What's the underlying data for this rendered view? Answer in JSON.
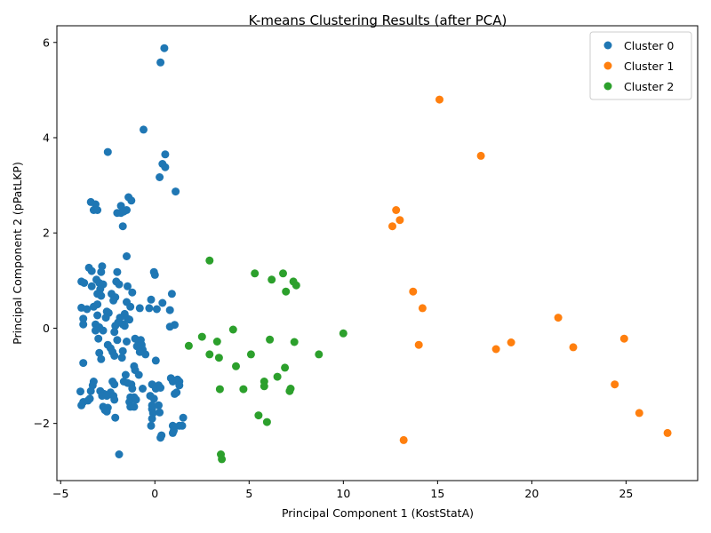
{
  "chart_data": {
    "type": "scatter",
    "title": "K-means Clustering Results (after PCA)",
    "xlabel": "Principal Component 1 (KostStatA)",
    "ylabel": "Principal Component 2 (pPatLKP)",
    "xlim": [
      -5.2,
      28.8
    ],
    "ylim": [
      -3.2,
      6.35
    ],
    "xticks": [
      -5,
      0,
      5,
      10,
      15,
      20,
      25
    ],
    "yticks": [
      -2,
      0,
      2,
      4,
      6
    ],
    "grid": false,
    "legend_position": "top-right",
    "series": [
      {
        "name": "Cluster 0",
        "color": "#1f77b4",
        "points": [
          [
            0.5,
            5.88
          ],
          [
            0.3,
            5.58
          ],
          [
            -0.6,
            4.17
          ],
          [
            0.55,
            3.65
          ],
          [
            -2.5,
            3.7
          ],
          [
            0.4,
            3.45
          ],
          [
            0.55,
            3.38
          ],
          [
            0.25,
            3.17
          ],
          [
            1.1,
            2.87
          ],
          [
            -1.4,
            2.75
          ],
          [
            -1.25,
            2.68
          ],
          [
            -3.4,
            2.65
          ],
          [
            -3.15,
            2.6
          ],
          [
            -3.25,
            2.48
          ],
          [
            -3.05,
            2.48
          ],
          [
            -1.8,
            2.57
          ],
          [
            -1.5,
            2.48
          ],
          [
            -2.0,
            2.42
          ],
          [
            -1.8,
            2.42
          ],
          [
            -1.65,
            2.45
          ],
          [
            -1.7,
            2.14
          ],
          [
            -1.5,
            1.51
          ],
          [
            -3.5,
            1.27
          ],
          [
            -3.35,
            1.2
          ],
          [
            -2.8,
            1.3
          ],
          [
            -2.85,
            1.18
          ],
          [
            -2.0,
            1.18
          ],
          [
            -0.05,
            1.18
          ],
          [
            0.0,
            1.12
          ],
          [
            -3.9,
            0.98
          ],
          [
            -3.75,
            0.95
          ],
          [
            -3.1,
            1.02
          ],
          [
            -2.95,
            0.95
          ],
          [
            -2.75,
            0.92
          ],
          [
            -3.35,
            0.88
          ],
          [
            -2.05,
            0.98
          ],
          [
            -1.9,
            0.92
          ],
          [
            -1.45,
            0.88
          ],
          [
            -2.9,
            0.82
          ],
          [
            -2.3,
            0.72
          ],
          [
            -3.05,
            0.72
          ],
          [
            -2.85,
            0.68
          ],
          [
            -2.1,
            0.65
          ],
          [
            -2.2,
            0.58
          ],
          [
            -1.2,
            0.75
          ],
          [
            -0.2,
            0.6
          ],
          [
            0.4,
            0.53
          ],
          [
            0.9,
            0.72
          ],
          [
            0.8,
            0.38
          ],
          [
            0.1,
            0.4
          ],
          [
            -0.3,
            0.42
          ],
          [
            -0.8,
            0.42
          ],
          [
            -3.9,
            0.43
          ],
          [
            -3.6,
            0.4
          ],
          [
            -3.25,
            0.45
          ],
          [
            -3.05,
            0.5
          ],
          [
            -2.55,
            0.35
          ],
          [
            -2.45,
            0.32
          ],
          [
            -1.5,
            0.55
          ],
          [
            -1.3,
            0.45
          ],
          [
            -1.6,
            0.3
          ],
          [
            -1.45,
            0.2
          ],
          [
            -1.7,
            0.08
          ],
          [
            -3.8,
            0.2
          ],
          [
            -3.05,
            0.27
          ],
          [
            -2.6,
            0.22
          ],
          [
            -1.95,
            0.12
          ],
          [
            -1.85,
            0.22
          ],
          [
            -1.35,
            0.18
          ],
          [
            -3.8,
            0.08
          ],
          [
            -3.15,
            0.08
          ],
          [
            -2.95,
            0.02
          ],
          [
            -2.1,
            0.05
          ],
          [
            -1.6,
            0.05
          ],
          [
            -2.15,
            -0.08
          ],
          [
            -3.15,
            -0.05
          ],
          [
            -2.75,
            -0.05
          ],
          [
            -3.0,
            -0.22
          ],
          [
            -2.0,
            -0.25
          ],
          [
            -1.5,
            -0.28
          ],
          [
            -1.05,
            -0.22
          ],
          [
            -0.85,
            -0.3
          ],
          [
            -0.75,
            -0.25
          ],
          [
            -0.95,
            -0.38
          ],
          [
            -0.7,
            -0.35
          ],
          [
            -0.65,
            -0.45
          ],
          [
            -0.5,
            -0.55
          ],
          [
            -0.8,
            -0.5
          ],
          [
            1.05,
            0.07
          ],
          [
            0.8,
            0.03
          ],
          [
            -2.5,
            -0.35
          ],
          [
            -2.35,
            -0.42
          ],
          [
            -2.25,
            -0.5
          ],
          [
            -1.7,
            -0.48
          ],
          [
            -2.95,
            -0.52
          ],
          [
            -2.85,
            -0.65
          ],
          [
            -2.15,
            -0.58
          ],
          [
            -1.75,
            -0.62
          ],
          [
            0.05,
            -0.68
          ],
          [
            -3.8,
            -0.73
          ],
          [
            -1.1,
            -0.8
          ],
          [
            -1.05,
            -0.88
          ],
          [
            -0.85,
            -0.98
          ],
          [
            -1.55,
            -0.98
          ],
          [
            -1.65,
            -1.12
          ],
          [
            -1.45,
            -1.15
          ],
          [
            -1.25,
            -1.18
          ],
          [
            -1.2,
            -1.27
          ],
          [
            -0.65,
            -1.27
          ],
          [
            -2.25,
            -1.12
          ],
          [
            -2.15,
            -1.18
          ],
          [
            -3.25,
            -1.12
          ],
          [
            -3.3,
            -1.2
          ],
          [
            -2.9,
            -1.32
          ],
          [
            -2.7,
            -1.38
          ],
          [
            -2.35,
            -1.35
          ],
          [
            -3.4,
            -1.32
          ],
          [
            -3.95,
            -1.33
          ],
          [
            -3.8,
            -1.55
          ],
          [
            -3.55,
            -1.52
          ],
          [
            -3.9,
            -1.62
          ],
          [
            -3.45,
            -1.48
          ],
          [
            -1.3,
            -1.45
          ],
          [
            -1.1,
            -1.45
          ],
          [
            0.85,
            -1.05
          ],
          [
            0.95,
            -1.12
          ],
          [
            1.2,
            -1.08
          ],
          [
            1.3,
            -1.12
          ],
          [
            1.3,
            -1.2
          ],
          [
            0.2,
            -1.2
          ],
          [
            -0.15,
            -1.18
          ],
          [
            0.05,
            -1.27
          ],
          [
            0.3,
            -1.25
          ],
          [
            1.05,
            -1.38
          ],
          [
            1.15,
            -1.35
          ],
          [
            -0.25,
            -1.42
          ],
          [
            -0.05,
            -1.48
          ],
          [
            -2.8,
            -1.42
          ],
          [
            -2.55,
            -1.42
          ],
          [
            -2.2,
            -1.42
          ],
          [
            -2.15,
            -1.5
          ],
          [
            -1.0,
            -1.5
          ],
          [
            -1.35,
            -1.55
          ],
          [
            -1.3,
            -1.65
          ],
          [
            -1.1,
            -1.65
          ],
          [
            -2.75,
            -1.65
          ],
          [
            -2.5,
            -1.67
          ],
          [
            -2.65,
            -1.72
          ],
          [
            -2.55,
            -1.75
          ],
          [
            -0.15,
            -1.7
          ],
          [
            -0.15,
            -1.62
          ],
          [
            0.2,
            -1.62
          ],
          [
            0.25,
            -1.77
          ],
          [
            -0.1,
            -1.78
          ],
          [
            -2.1,
            -1.88
          ],
          [
            -0.15,
            -1.9
          ],
          [
            1.5,
            -1.88
          ],
          [
            1.3,
            -2.05
          ],
          [
            1.45,
            -2.05
          ],
          [
            0.95,
            -2.05
          ],
          [
            1.0,
            -2.15
          ],
          [
            0.95,
            -2.2
          ],
          [
            -0.2,
            -2.05
          ],
          [
            0.35,
            -2.25
          ],
          [
            0.3,
            -2.3
          ],
          [
            -1.9,
            -2.65
          ]
        ]
      },
      {
        "name": "Cluster 1",
        "color": "#ff7f0e",
        "points": [
          [
            15.1,
            4.8
          ],
          [
            17.3,
            3.62
          ],
          [
            12.8,
            2.48
          ],
          [
            13.0,
            2.27
          ],
          [
            12.6,
            2.14
          ],
          [
            13.7,
            0.77
          ],
          [
            14.2,
            0.42
          ],
          [
            21.4,
            0.22
          ],
          [
            14.0,
            -0.35
          ],
          [
            18.9,
            -0.3
          ],
          [
            18.1,
            -0.44
          ],
          [
            24.9,
            -0.22
          ],
          [
            22.2,
            -0.4
          ],
          [
            24.4,
            -1.18
          ],
          [
            25.7,
            -1.78
          ],
          [
            27.2,
            -2.2
          ],
          [
            13.2,
            -2.35
          ]
        ]
      },
      {
        "name": "Cluster 2",
        "color": "#2ca02c",
        "points": [
          [
            2.9,
            1.42
          ],
          [
            5.3,
            1.15
          ],
          [
            6.8,
            1.15
          ],
          [
            6.2,
            1.02
          ],
          [
            7.35,
            0.98
          ],
          [
            7.5,
            0.9
          ],
          [
            6.95,
            0.77
          ],
          [
            4.15,
            -0.03
          ],
          [
            2.5,
            -0.18
          ],
          [
            3.3,
            -0.28
          ],
          [
            6.1,
            -0.24
          ],
          [
            7.4,
            -0.29
          ],
          [
            10.0,
            -0.11
          ],
          [
            1.8,
            -0.37
          ],
          [
            2.9,
            -0.55
          ],
          [
            3.4,
            -0.62
          ],
          [
            5.1,
            -0.55
          ],
          [
            8.7,
            -0.55
          ],
          [
            4.3,
            -0.8
          ],
          [
            6.9,
            -0.83
          ],
          [
            6.5,
            -1.02
          ],
          [
            5.8,
            -1.12
          ],
          [
            5.8,
            -1.22
          ],
          [
            7.2,
            -1.27
          ],
          [
            7.15,
            -1.32
          ],
          [
            3.45,
            -1.28
          ],
          [
            4.7,
            -1.28
          ],
          [
            5.5,
            -1.83
          ],
          [
            5.95,
            -1.97
          ],
          [
            3.5,
            -2.65
          ],
          [
            3.55,
            -2.75
          ]
        ]
      }
    ]
  }
}
